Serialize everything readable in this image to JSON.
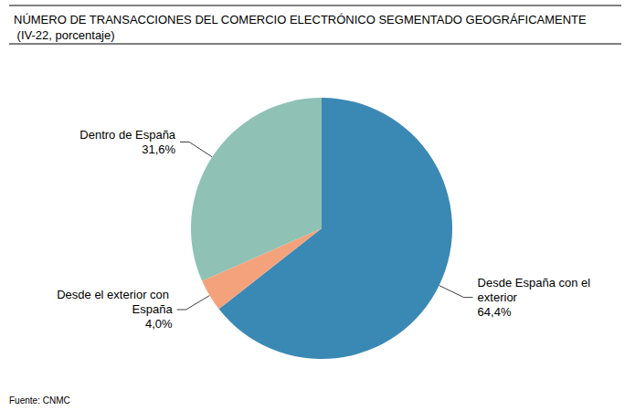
{
  "chart_data": {
    "type": "pie",
    "title": "NÚMERO DE TRANSACCIONES DEL COMERCIO ELECTRÓNICO SEGMENTADO GEOGRÁFICAMENTE (IV-22, porcentaje)",
    "source": "Fuente: CNMC",
    "categories": [
      "Desde España con el exterior",
      "Desde el exterior con España",
      "Dentro de España"
    ],
    "values": [
      64.4,
      4.0,
      31.6
    ],
    "value_labels": [
      "64,4%",
      "4,0%",
      "31,6%"
    ],
    "colors": [
      "#3a89b4",
      "#f4a27c",
      "#8fc1b5"
    ],
    "data_labels": true
  }
}
